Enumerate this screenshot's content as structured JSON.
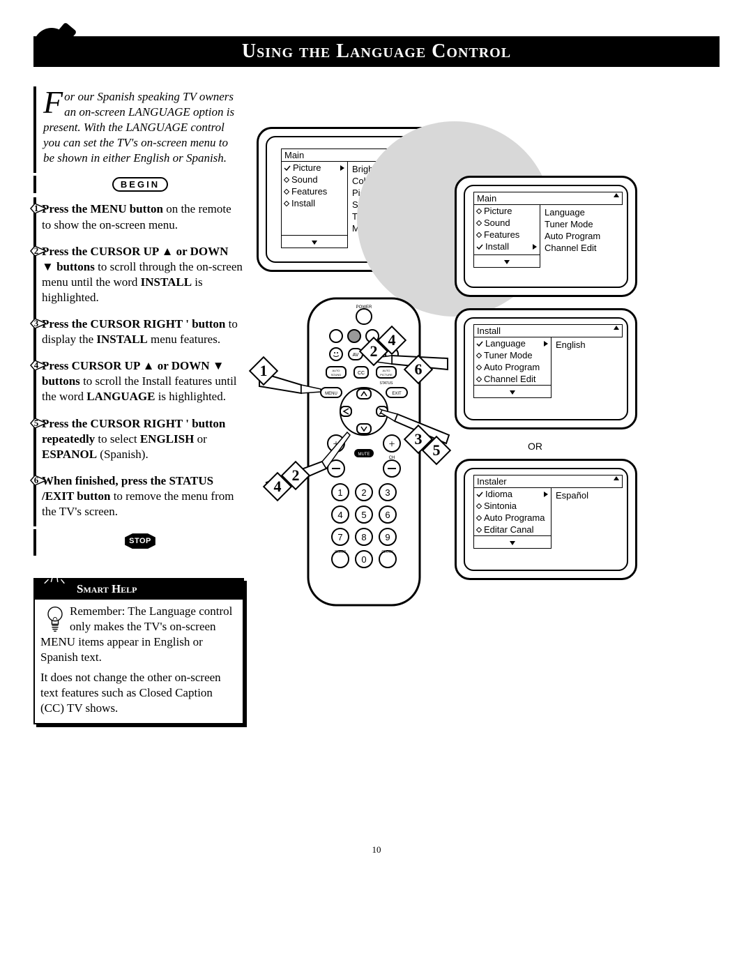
{
  "title": "Using the Language Control",
  "intro": {
    "dropcap": "F",
    "text": "or our Spanish speaking TV owners an on-screen LANGUAGE option is present. With the LANGUAGE control you can set the TV's on-screen menu to be shown in either English or Spanish."
  },
  "begin": "BEGIN",
  "steps": [
    {
      "n": "1",
      "html": "<b>Press the MENU button</b> on the remote to show the on-screen menu."
    },
    {
      "n": "2",
      "html": "<b>Press the CURSOR UP ▲ or DOWN ▼ buttons</b> to scroll through the on-screen menu until the word <b>INSTALL</b> is highlighted."
    },
    {
      "n": "3",
      "html": "<b>Press the CURSOR RIGHT ' button</b> to display the <b>INSTALL</b> menu features."
    },
    {
      "n": "4",
      "html": "<b>Press CURSOR UP ▲ or DOWN ▼ buttons</b> to scroll the Install features until the word <b>LANGUAGE</b> is highlighted."
    },
    {
      "n": "5",
      "html": "<b>Press the CURSOR RIGHT ' button repeatedly</b> to select <b>ENGLISH</b> or <b>ESPANOL</b> (Spanish)."
    },
    {
      "n": "6",
      "html": "<b>When finished, press the STATUS /EXIT button</b> to remove the menu from the TV's screen."
    }
  ],
  "stop": "STOP",
  "smart": {
    "header": "Smart Help",
    "p1": "Remember: The Language control only makes the TV's on-screen MENU items appear in English or Spanish text.",
    "p2": "It does not change the other on-screen text features such as Closed Caption (CC) TV shows."
  },
  "pagenum": "10",
  "or": "OR",
  "menu1": {
    "title": "Main",
    "left": [
      {
        "mark": "check",
        "label": "Picture",
        "arrow": true
      },
      {
        "mark": "dia",
        "label": "Sound"
      },
      {
        "mark": "dia",
        "label": "Features"
      },
      {
        "mark": "dia",
        "label": "Install"
      }
    ],
    "right": [
      "Brightness",
      "Color",
      "Picture",
      "Sharpness",
      "Tint",
      "More..."
    ]
  },
  "menu2": {
    "title": "Main",
    "left": [
      {
        "mark": "dia",
        "label": "Picture"
      },
      {
        "mark": "dia",
        "label": "Sound"
      },
      {
        "mark": "dia",
        "label": "Features"
      },
      {
        "mark": "check",
        "label": "Install",
        "arrow": true
      }
    ],
    "right": [
      "Language",
      "Tuner Mode",
      "Auto Program",
      "Channel Edit"
    ]
  },
  "menu3": {
    "title": "Install",
    "left": [
      {
        "mark": "check",
        "label": "Language",
        "arrow": true
      },
      {
        "mark": "dia",
        "label": "Tuner Mode"
      },
      {
        "mark": "dia",
        "label": "Auto Program"
      },
      {
        "mark": "dia",
        "label": "Channel Edit"
      }
    ],
    "right": [
      "English"
    ]
  },
  "menu4": {
    "title": "Instaler",
    "left": [
      {
        "mark": "check",
        "label": "Idioma",
        "arrow": true
      },
      {
        "mark": "dia",
        "label": "Sintonia"
      },
      {
        "mark": "dia",
        "label": "Auto Programa"
      },
      {
        "mark": "dia",
        "label": "Editar Canal"
      }
    ],
    "right": [
      "Español"
    ]
  },
  "remote_labels": {
    "power": "POWER",
    "av": "AV",
    "auto_sound": "AUTO SOUND",
    "cc": "CC",
    "auto_picture": "AUTO PICTURE",
    "status": "STATUS",
    "menu": "MENU",
    "exit": "EXIT",
    "mute": "MUTE",
    "ch": "CH",
    "sleep": "SLEEP",
    "clock": "CLOCK"
  }
}
